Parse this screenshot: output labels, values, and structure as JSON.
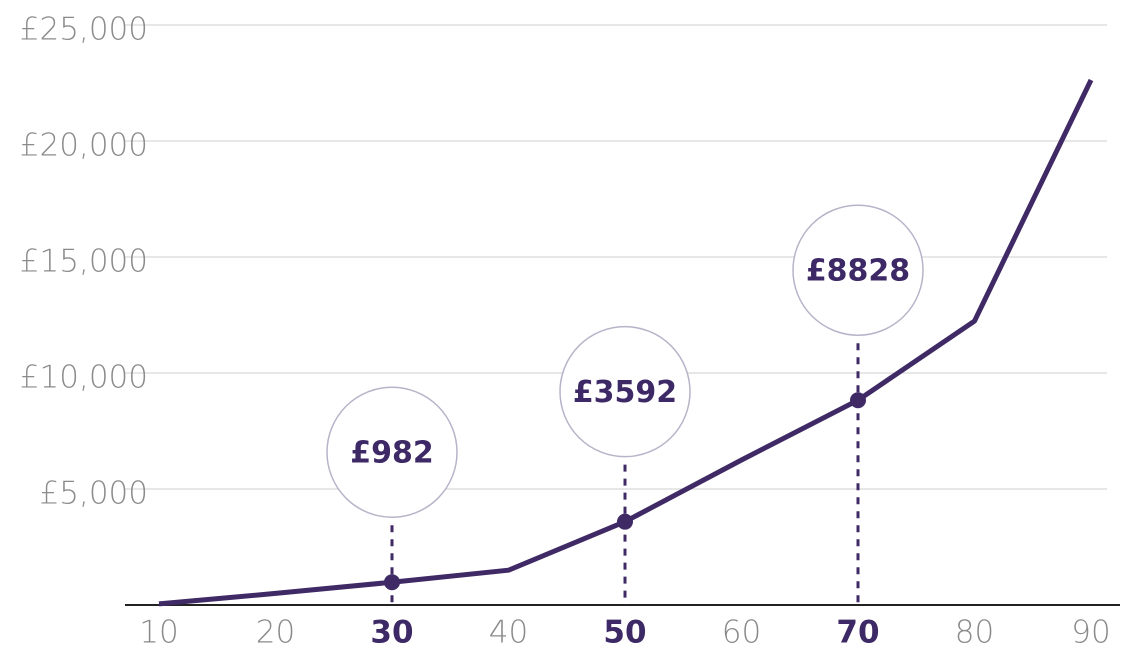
{
  "chart_data": {
    "type": "line",
    "x": [
      10,
      20,
      30,
      40,
      50,
      60,
      70,
      80,
      90
    ],
    "values": [
      50,
      500,
      982,
      1500,
      3592,
      6250,
      8828,
      12240,
      22630
    ],
    "value_labels": [
      null,
      null,
      "£982",
      null,
      "£3592",
      null,
      "£8828",
      null,
      null
    ],
    "color": "#3f2a66",
    "xlim": [
      10,
      90
    ],
    "xticks": [
      10,
      20,
      30,
      40,
      50,
      60,
      70,
      80,
      90
    ],
    "ylim": [
      0,
      25000
    ],
    "yticks": [
      {
        "value": 5000,
        "label": "£5,000"
      },
      {
        "value": 10000,
        "label": "£10,000"
      },
      {
        "value": 15000,
        "label": "£15,000"
      },
      {
        "value": 20000,
        "label": "£20,000"
      },
      {
        "value": 25000,
        "label": "£25,000"
      }
    ],
    "grid": true
  }
}
